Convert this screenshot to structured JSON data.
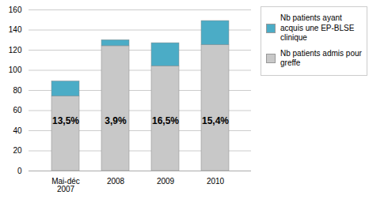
{
  "chart_data": {
    "type": "bar",
    "stacked": true,
    "categories": [
      "Mai-déc\n2007",
      "2008",
      "2009",
      "2010"
    ],
    "series": [
      {
        "name": "Nb patients admis pour\ngreffe",
        "color": "#c8c8c8",
        "values": [
          74,
          124,
          104,
          125
        ]
      },
      {
        "name": "Nb patients ayant\nacquis une EP-BLSE\nclinique",
        "color": "#4bacc6",
        "values": [
          15,
          6,
          23,
          24
        ]
      }
    ],
    "annotations": [
      {
        "x": "Mai-déc\n2007",
        "y": 50,
        "text": "13,5%"
      },
      {
        "x": "2008",
        "y": 50,
        "text": "3,9%"
      },
      {
        "x": "2009",
        "y": 50,
        "text": "16,5%"
      },
      {
        "x": "2010",
        "y": 50,
        "text": "15,4%"
      }
    ],
    "ylim": [
      0,
      160
    ],
    "yticks": [
      0,
      20,
      40,
      60,
      80,
      100,
      120,
      140,
      160
    ],
    "grid": true,
    "legend": "right"
  }
}
